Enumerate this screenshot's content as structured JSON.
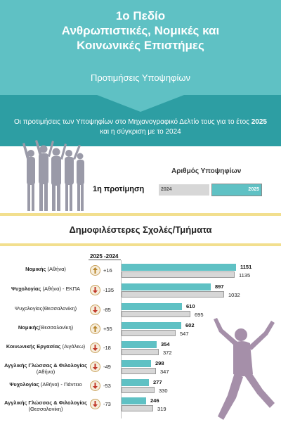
{
  "header": {
    "title_line1": "1ο Πεδίο",
    "title_line2": "Ανθρωπιστικές, Νομικές και",
    "title_line3": "Κοινωνικές Επιστήμες",
    "subtitle": "Προτιμήσεις Υποψηφίων",
    "desc_part1": "Οι προτιμήσεις των Υποψηφίων στο Μηχανογραφικό Δελτίο τους για το έτος ",
    "desc_year": "2025",
    "desc_part2": " και η σύγκριση με το 2024"
  },
  "candidates": {
    "header": "Αριθμός Υποψηφίων",
    "pref_label": "1η προτίμηση",
    "label_2024": "2024",
    "label_2025": "2025"
  },
  "section_title": "Δημοφιλέστερες Σχολές/Τμήματα",
  "columns": {
    "diff_header": "2025 -2024"
  },
  "colors": {
    "teal": "#5fc1c4",
    "dark_teal": "#2d9ea3",
    "grey": "#d7d7d7",
    "gold": "#f2df8e",
    "silhouette": "#9a9aa8",
    "jumper": "#a58fa9"
  },
  "chart_data": {
    "type": "bar",
    "categories": [
      "Νομικής (Αθήνα)",
      "Ψυχολογίας (Αθήνα) - ΕΚΠΑ",
      "Ψυχολογίας(Θεσσαλονίκη)",
      "Νομικής(Θεσσαλονίκη)",
      "Κοινωνικής Εργασίας (Αιγάλεω)",
      "Αγγλικής Γλώσσας & Φιλολογίας (Αθήνα)",
      "Ψυχολογίας (Αθήνα) - Πάντειο",
      "Αγγλικής Γλώσσας & Φιλολογίας (Θεσσαλονίκη)"
    ],
    "series": [
      {
        "name": "2025",
        "values": [
          1151,
          897,
          610,
          602,
          354,
          298,
          277,
          246
        ]
      },
      {
        "name": "2024",
        "values": [
          1135,
          1032,
          695,
          547,
          372,
          347,
          330,
          319
        ]
      }
    ],
    "diff": [
      "+16",
      "-135",
      "-85",
      "+55",
      "-18",
      "-49",
      "-53",
      "-73"
    ]
  },
  "rows": [
    {
      "bold": "Νομικής",
      "rest": " (Αθήνα)",
      "diff": "+16",
      "up": true,
      "v25": "1151",
      "v24": "1135"
    },
    {
      "bold": "Ψυχολογίας",
      "rest": " (Αθήνα) - ΕΚΠΑ",
      "diff": "-135",
      "up": false,
      "v25": "897",
      "v24": "1032"
    },
    {
      "bold": "",
      "rest": "Ψυχολογίας(Θεσσαλονίκη)",
      "diff": "-85",
      "up": false,
      "v25": "610",
      "v24": "695"
    },
    {
      "bold": "Νομικής",
      "rest": "(Θεσσαλονίκη)",
      "diff": "+55",
      "up": true,
      "v25": "602",
      "v24": "547"
    },
    {
      "bold": "Κοινωνικής Εργασίας",
      "rest": " (Αιγάλεω)",
      "diff": "-18",
      "up": false,
      "v25": "354",
      "v24": "372"
    },
    {
      "bold": "Αγγλικής Γλώσσας & Φιλολογίας",
      "rest": " (Αθήνα)",
      "diff": "-49",
      "up": false,
      "v25": "298",
      "v24": "347"
    },
    {
      "bold": "Ψυχολογίας",
      "rest": " (Αθήνα) - Πάντειο",
      "diff": "-53",
      "up": false,
      "v25": "277",
      "v24": "330"
    },
    {
      "bold": "Αγγλικής Γλώσσας & Φιλολογίας",
      "rest": " (Θεσσαλονίκη)",
      "diff": "-73",
      "up": false,
      "v25": "246",
      "v24": "319"
    }
  ]
}
